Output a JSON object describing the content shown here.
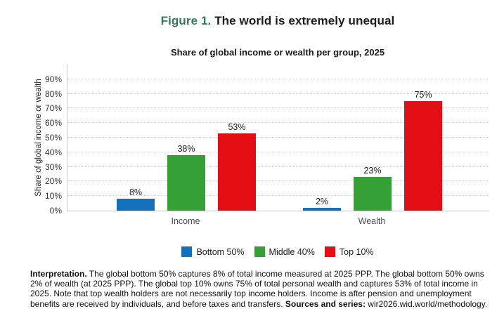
{
  "figure": {
    "label": "Figure 1.",
    "title": "The world is extremely unequal",
    "label_color": "#337a5b"
  },
  "chart_data": {
    "type": "bar",
    "title": "Share of global income or wealth per group, 2025",
    "categories": [
      "Income",
      "Wealth"
    ],
    "series": [
      {
        "name": "Bottom 50%",
        "color": "#1470b8",
        "values": [
          8,
          2
        ]
      },
      {
        "name": "Middle 40%",
        "color": "#35a035",
        "values": [
          38,
          23
        ]
      },
      {
        "name": "Top 10%",
        "color": "#e30e13",
        "values": [
          53,
          75
        ]
      }
    ],
    "unit": "%",
    "ylabel": "Share of global income or wealth",
    "ylim": [
      0,
      100
    ],
    "yticks": [
      0,
      10,
      20,
      30,
      40,
      50,
      60,
      70,
      80,
      90
    ],
    "grid": "horizontal-dotted",
    "legend_position": "bottom",
    "bar_value_labels": true
  },
  "notes": {
    "interpretation_label": "Interpretation.",
    "interpretation_text": "The global bottom 50% captures 8% of total income measured at 2025 PPP. The global bottom 50% owns 2% of wealth (at 2025 PPP). The global top 10% owns 75% of total personal wealth and captures 53% of total income in 2025. Note that top wealth holders are not necessarily top income holders. Income is after pension and unemployment benefits are received by individuals, and before taxes and transfers.",
    "sources_label": "Sources and series:",
    "sources_text": "wir2026.wid.world/methodology."
  }
}
